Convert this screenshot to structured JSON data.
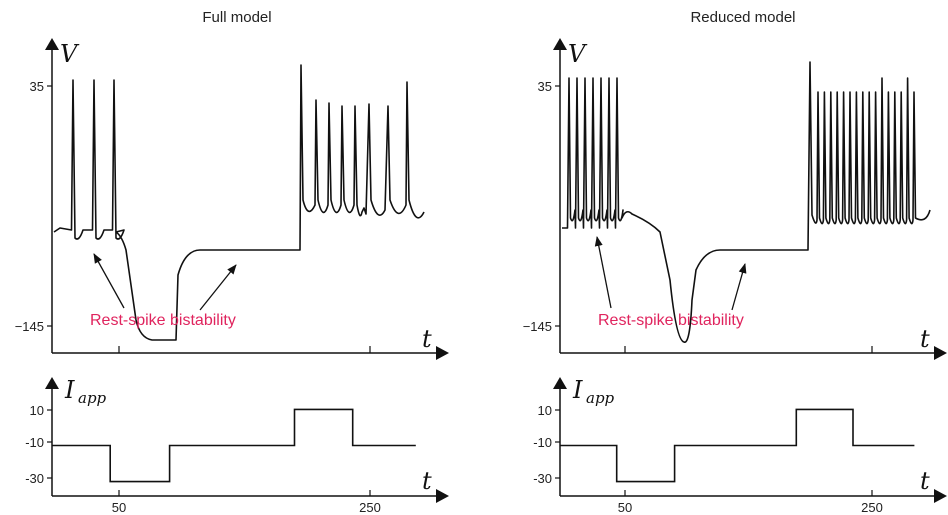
{
  "colors": {
    "trace": "#111111",
    "axis": "#111111",
    "annotation": "#e0245e"
  },
  "chart_data": [
    {
      "type": "line",
      "title": "Full model",
      "ylabel": "V",
      "xlabel": "t",
      "yticks": [
        {
          "value": 35,
          "label": "35"
        },
        {
          "value": -145,
          "label": "−145"
        }
      ],
      "annotation": "Rest-spike bistability",
      "ylim": [
        -160,
        55
      ],
      "xlim": [
        0,
        320
      ]
    },
    {
      "type": "line",
      "title": "Full model",
      "ylabel": "I",
      "ylabel_sub": "app",
      "xlabel": "t",
      "xticks": [
        {
          "value": 50,
          "label": "50"
        },
        {
          "value": 250,
          "label": "250"
        }
      ],
      "yticks": [
        {
          "value": 10,
          "label": "10"
        },
        {
          "value": -10,
          "label": "-10"
        },
        {
          "value": -30,
          "label": "-30"
        }
      ],
      "x": [
        0,
        48,
        48,
        97,
        97,
        200,
        200,
        248,
        248,
        300
      ],
      "y": [
        -10,
        -10,
        -30,
        -30,
        -10,
        -10,
        10,
        10,
        -10,
        -10
      ],
      "ylim": [
        -38,
        18
      ],
      "xlim": [
        0,
        320
      ]
    },
    {
      "type": "line",
      "title": "Reduced model",
      "ylabel": "V",
      "xlabel": "t",
      "yticks": [
        {
          "value": 35,
          "label": "35"
        },
        {
          "value": -145,
          "label": "−145"
        }
      ],
      "annotation": "Rest-spike bistability",
      "ylim": [
        -160,
        55
      ],
      "xlim": [
        0,
        320
      ]
    },
    {
      "type": "line",
      "title": "Reduced model",
      "ylabel": "I",
      "ylabel_sub": "app",
      "xlabel": "t",
      "xticks": [
        {
          "value": 50,
          "label": "50"
        },
        {
          "value": 250,
          "label": "250"
        }
      ],
      "yticks": [
        {
          "value": 10,
          "label": "10"
        },
        {
          "value": -10,
          "label": "-10"
        },
        {
          "value": -30,
          "label": "-30"
        }
      ],
      "x": [
        0,
        48,
        48,
        97,
        97,
        200,
        200,
        248,
        248,
        300
      ],
      "y": [
        -10,
        -10,
        -30,
        -30,
        -10,
        -10,
        10,
        10,
        -10,
        -10
      ],
      "ylim": [
        -38,
        18
      ],
      "xlim": [
        0,
        320
      ]
    }
  ]
}
